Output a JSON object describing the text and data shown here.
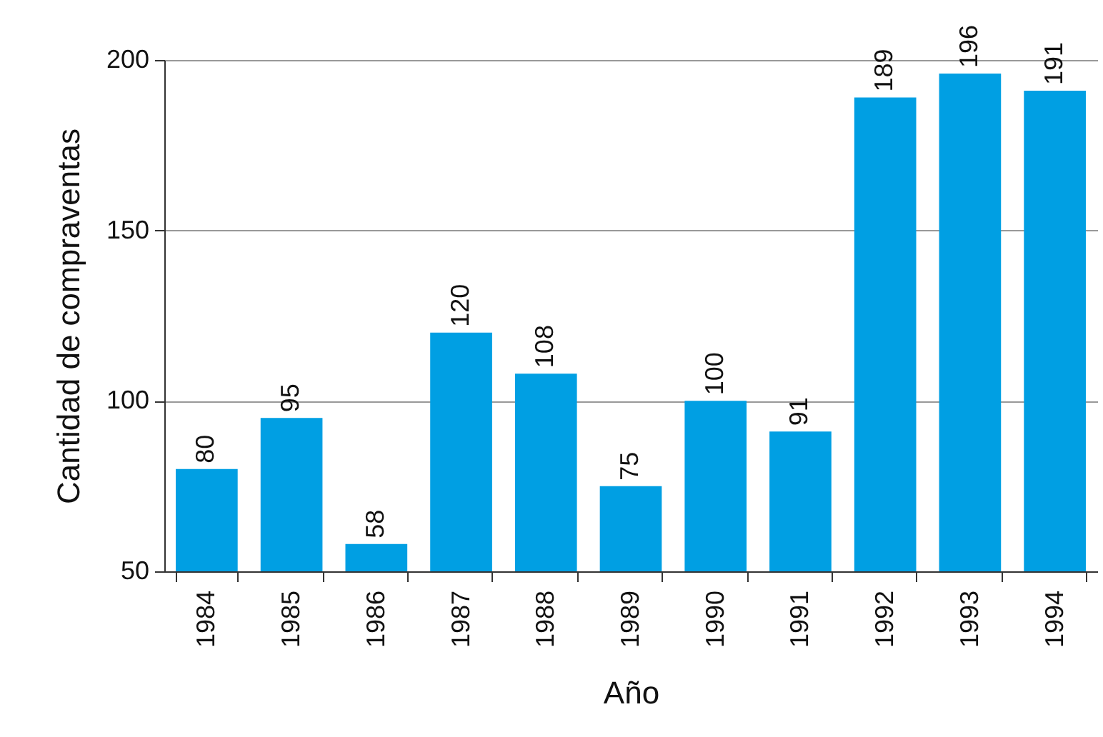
{
  "chart_data": {
    "type": "bar",
    "xlabel": "Año",
    "ylabel": "Cantidad de compraventas",
    "categories": [
      "1984",
      "1985",
      "1986",
      "1987",
      "1988",
      "1989",
      "1990",
      "1991",
      "1992",
      "1993",
      "1994"
    ],
    "values": [
      80,
      95,
      58,
      120,
      108,
      75,
      100,
      91,
      189,
      196,
      191
    ],
    "color": "#009fe3",
    "ylim": [
      50,
      200
    ],
    "yticks": [
      50,
      100,
      150,
      200
    ],
    "grid": "y",
    "data_labels": true
  }
}
